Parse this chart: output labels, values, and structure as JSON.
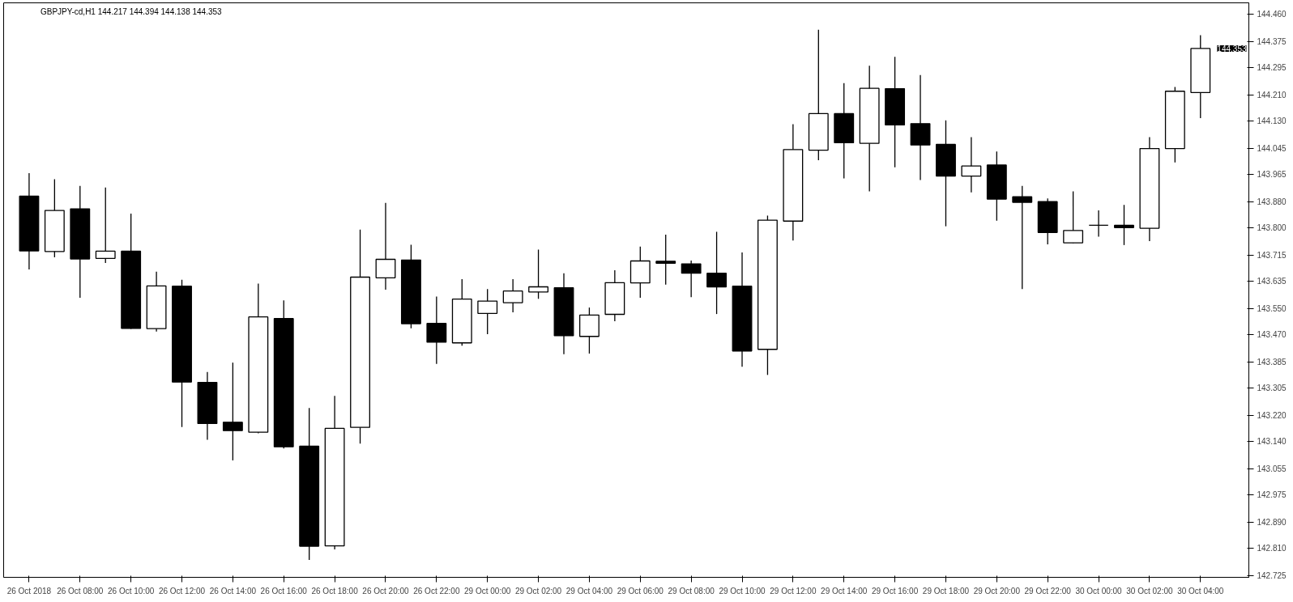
{
  "chart_data": {
    "type": "candlestick",
    "title": "GBPJPY-cd,H1  144.217 144.394 144.138 144.353",
    "categories": [
      "26 Oct 2018",
      null,
      "26 Oct 08:00",
      null,
      "26 Oct 10:00",
      null,
      "26 Oct 12:00",
      null,
      "26 Oct 14:00",
      null,
      "26 Oct 16:00",
      null,
      "26 Oct 18:00",
      null,
      "26 Oct 20:00",
      null,
      "26 Oct 22:00",
      null,
      "29 Oct 00:00",
      null,
      "29 Oct 02:00",
      null,
      "29 Oct 04:00",
      null,
      "29 Oct 06:00",
      null,
      "29 Oct 08:00",
      null,
      "29 Oct 10:00",
      null,
      "29 Oct 12:00",
      null,
      "29 Oct 14:00",
      null,
      "29 Oct 16:00",
      null,
      "29 Oct 18:00",
      null,
      "29 Oct 20:00",
      null,
      "29 Oct 22:00",
      null,
      "30 Oct 00:00",
      null,
      "30 Oct 02:00",
      null,
      "30 Oct 04:00"
    ],
    "ohlc": [
      [
        143.897,
        143.968,
        143.671,
        143.728
      ],
      [
        143.726,
        143.949,
        143.708,
        143.853
      ],
      [
        143.858,
        143.929,
        143.583,
        143.703
      ],
      [
        143.705,
        143.924,
        143.691,
        143.727
      ],
      [
        143.727,
        143.843,
        143.487,
        143.489
      ],
      [
        143.488,
        143.664,
        143.479,
        143.62
      ],
      [
        143.619,
        143.639,
        143.184,
        143.323
      ],
      [
        143.322,
        143.354,
        143.145,
        143.195
      ],
      [
        143.199,
        143.383,
        143.081,
        143.173
      ],
      [
        143.168,
        143.627,
        143.165,
        143.524
      ],
      [
        143.519,
        143.575,
        143.118,
        143.123
      ],
      [
        143.125,
        143.243,
        142.774,
        142.816
      ],
      [
        142.817,
        143.28,
        142.806,
        143.18
      ],
      [
        143.183,
        143.794,
        143.133,
        143.647
      ],
      [
        143.645,
        143.876,
        143.608,
        143.702
      ],
      [
        143.7,
        143.747,
        143.489,
        143.503
      ],
      [
        143.504,
        143.587,
        143.379,
        143.446
      ],
      [
        143.444,
        143.641,
        143.435,
        143.579
      ],
      [
        143.535,
        143.61,
        143.471,
        143.573
      ],
      [
        143.568,
        143.641,
        143.538,
        143.604
      ],
      [
        143.601,
        143.732,
        143.58,
        143.617
      ],
      [
        143.614,
        143.659,
        143.409,
        143.466
      ],
      [
        143.464,
        143.553,
        143.411,
        143.53
      ],
      [
        143.532,
        143.668,
        143.511,
        143.63
      ],
      [
        143.629,
        143.741,
        143.583,
        143.697
      ],
      [
        143.696,
        143.778,
        143.624,
        143.69
      ],
      [
        143.688,
        143.698,
        143.585,
        143.659
      ],
      [
        143.659,
        143.787,
        143.533,
        143.617
      ],
      [
        143.619,
        143.723,
        143.37,
        143.419
      ],
      [
        143.424,
        143.837,
        143.345,
        143.823
      ],
      [
        143.82,
        144.119,
        143.76,
        144.041
      ],
      [
        144.039,
        144.411,
        144.008,
        144.152
      ],
      [
        144.152,
        144.246,
        143.952,
        144.062
      ],
      [
        144.06,
        144.3,
        143.912,
        144.23
      ],
      [
        144.229,
        144.327,
        143.986,
        144.117
      ],
      [
        144.121,
        144.271,
        143.947,
        144.055
      ],
      [
        144.057,
        144.131,
        143.804,
        143.959
      ],
      [
        143.959,
        144.079,
        143.909,
        143.99
      ],
      [
        143.993,
        144.035,
        143.821,
        143.888
      ],
      [
        143.895,
        143.929,
        143.61,
        143.878
      ],
      [
        143.88,
        143.89,
        143.748,
        143.785
      ],
      [
        143.753,
        143.912,
        143.752,
        143.791
      ],
      [
        143.807,
        143.853,
        143.772,
        143.807
      ],
      [
        143.807,
        143.87,
        143.746,
        143.8
      ],
      [
        143.798,
        144.079,
        143.758,
        144.044
      ],
      [
        144.044,
        144.234,
        144.001,
        144.221
      ],
      [
        144.217,
        144.394,
        144.138,
        144.353
      ]
    ],
    "colors": [
      "#000000",
      "#ffffff",
      "#000000",
      "#ffffff",
      "#000000",
      "#ffffff",
      "#000000",
      "#000000",
      "#000000",
      "#ffffff",
      "#000000",
      "#000000",
      "#ffffff",
      "#ffffff",
      "#ffffff",
      "#000000",
      "#000000",
      "#ffffff",
      "#ffffff",
      "#ffffff",
      "#ffffff",
      "#000000",
      "#ffffff",
      "#ffffff",
      "#ffffff",
      "#000000",
      "#000000",
      "#000000",
      "#000000",
      "#ffffff",
      "#ffffff",
      "#ffffff",
      "#000000",
      "#ffffff",
      "#000000",
      "#000000",
      "#000000",
      "#ffffff",
      "#000000",
      "#000000",
      "#000000",
      "#ffffff",
      "#000000",
      "#000000",
      "#ffffff",
      "#ffffff",
      "#ffffff"
    ],
    "ylim": [
      142.72,
      144.494
    ],
    "yticks": [
      {
        "value": 144.46,
        "label": "144.460"
      },
      144.375,
      144.295,
      {
        "value": 144.21,
        "label": "144.210"
      },
      {
        "value": 144.13,
        "label": "144.130"
      },
      144.045,
      143.965,
      {
        "value": 143.88,
        "label": "143.880"
      },
      {
        "value": 143.8,
        "label": "143.800"
      },
      143.715,
      143.635,
      {
        "value": 143.55,
        "label": "143.550"
      },
      {
        "value": 143.47,
        "label": "143.470"
      },
      143.385,
      143.305,
      {
        "value": 143.22,
        "label": "143.220"
      },
      {
        "value": 143.14,
        "label": "143.140"
      },
      143.055,
      142.975,
      {
        "value": 142.89,
        "label": "142.890"
      },
      {
        "value": 142.81,
        "label": "142.810"
      },
      142.725
    ],
    "annotations": [
      "144.353"
    ],
    "grid": false
  }
}
